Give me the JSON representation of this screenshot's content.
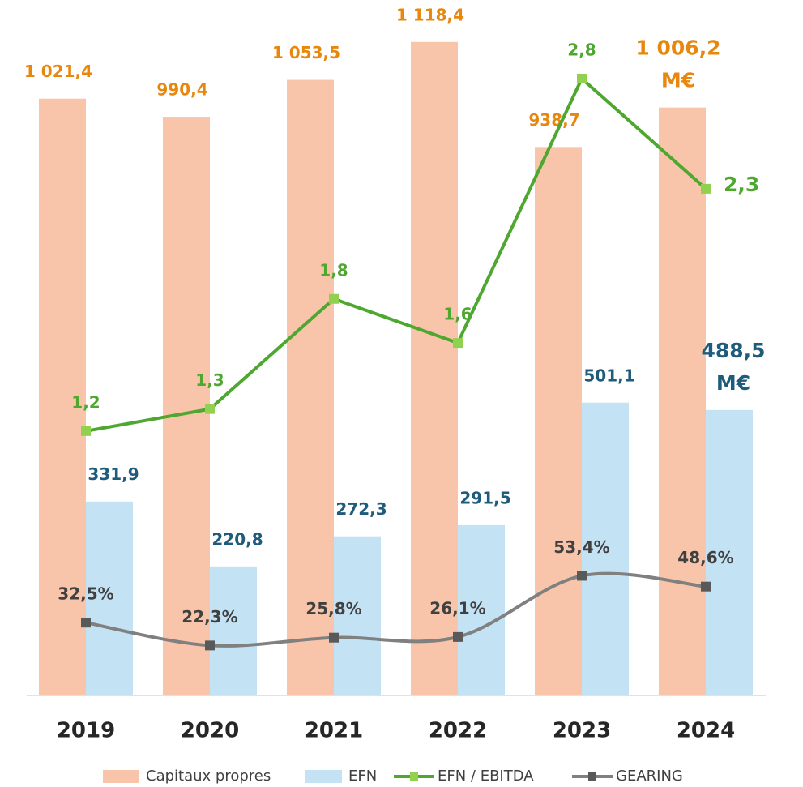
{
  "chart_data": {
    "type": "bar",
    "categories": [
      "2019",
      "2020",
      "2021",
      "2022",
      "2023",
      "2024"
    ],
    "series": [
      {
        "name": "Capitaux propres",
        "type": "bar",
        "color": "#f8c5ab",
        "label_color": "#e8870e",
        "values": [
          1021.4,
          990.4,
          1053.5,
          1118.4,
          938.7,
          1006.2
        ],
        "value_labels": [
          "1 021,4",
          "990,4",
          "1 053,5",
          "1 118,4",
          "938,7",
          "1 006,2\nM€"
        ]
      },
      {
        "name": "EFN",
        "type": "bar",
        "color": "#c3e3f5",
        "label_color": "#1f5b7a",
        "values": [
          331.9,
          220.8,
          272.3,
          291.5,
          501.1,
          488.5
        ],
        "value_labels": [
          "331,9",
          "220,8",
          "272,3",
          "291,5",
          "501,1",
          "488,5\nM€"
        ]
      },
      {
        "name": "EFN / EBITDA",
        "type": "line",
        "axis": "y2",
        "color": "#4ea72e",
        "marker_color": "#92d050",
        "label_color": "#4ea72e",
        "values": [
          1.2,
          1.3,
          1.8,
          1.6,
          2.8,
          2.3
        ],
        "value_labels": [
          "1,2",
          "1,3",
          "1,8",
          "1,6",
          "2,8",
          "2,3"
        ]
      },
      {
        "name": "GEARING",
        "type": "line",
        "axis": "y3",
        "smooth": true,
        "color": "#808080",
        "marker_color": "#595959",
        "label_color": "#404040",
        "values": [
          32.5,
          22.3,
          25.8,
          26.1,
          53.4,
          48.6
        ],
        "value_labels": [
          "32,5%",
          "22,3%",
          "25,8%",
          "26,1%",
          "53,4%",
          "48,6%"
        ]
      }
    ],
    "ylim": [
      0,
      1150
    ],
    "y2lim": [
      0,
      3.05
    ],
    "y3lim": [
      0,
      300
    ]
  }
}
